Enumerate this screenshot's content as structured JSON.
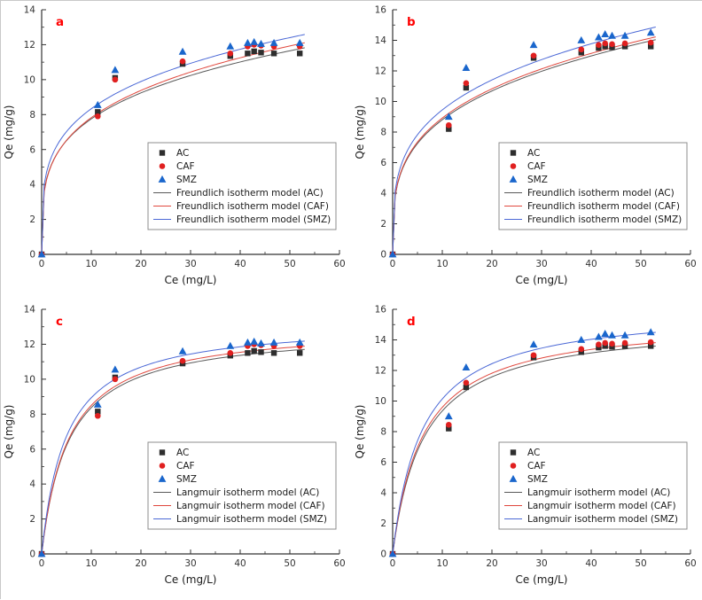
{
  "figure": {
    "background": "#ffffff",
    "axis_color": "#333333",
    "panel_letter_color": "#ff0000",
    "legend_border_color": "#8c8c8c",
    "colors": {
      "AC": "#2e2e2e",
      "CAF": "#e02020",
      "SMZ": "#1a66cc"
    },
    "line_colors": {
      "AC": "#595959",
      "CAF": "#e0483e",
      "SMZ": "#4b68d6"
    }
  },
  "chart_data": [
    {
      "type": "scatter",
      "panel": "a",
      "xlabel": "Ce (mg/L)",
      "ylabel": "Qe (mg/g)",
      "xlim": [
        0,
        60
      ],
      "ylim": [
        0,
        14
      ],
      "xticks": [
        0,
        10,
        20,
        30,
        40,
        50,
        60
      ],
      "yticks": [
        0,
        2,
        4,
        6,
        8,
        10,
        12,
        14
      ],
      "legend_position": "inside lower right",
      "series": [
        {
          "name": "AC",
          "kind": "scatter",
          "marker": "square",
          "color": "#2e2e2e",
          "points": [
            [
              0,
              0
            ],
            [
              11.3,
              8.15
            ],
            [
              14.8,
              10.1
            ],
            [
              28.4,
              10.9
            ],
            [
              38,
              11.35
            ],
            [
              41.5,
              11.5
            ],
            [
              42.8,
              11.62
            ],
            [
              44.2,
              11.55
            ],
            [
              46.8,
              11.5
            ],
            [
              52,
              11.5
            ]
          ]
        },
        {
          "name": "CAF",
          "kind": "scatter",
          "marker": "circle",
          "color": "#e02020",
          "points": [
            [
              0,
              0
            ],
            [
              11.3,
              7.9
            ],
            [
              14.8,
              10.0
            ],
            [
              28.4,
              11.05
            ],
            [
              38,
              11.5
            ],
            [
              41.5,
              11.9
            ],
            [
              42.8,
              12.0
            ],
            [
              44.2,
              11.95
            ],
            [
              46.8,
              11.9
            ],
            [
              52,
              11.9
            ]
          ]
        },
        {
          "name": "SMZ",
          "kind": "scatter",
          "marker": "triangle",
          "color": "#1a66cc",
          "points": [
            [
              0,
              0
            ],
            [
              11.3,
              8.55
            ],
            [
              14.8,
              10.55
            ],
            [
              28.4,
              11.6
            ],
            [
              38,
              11.9
            ],
            [
              41.5,
              12.1
            ],
            [
              42.8,
              12.15
            ],
            [
              44.2,
              12.05
            ],
            [
              46.8,
              12.1
            ],
            [
              52,
              12.1
            ]
          ]
        },
        {
          "name": "Freundlich isotherm model (AC)",
          "kind": "line",
          "color": "#595959",
          "model": "freundlich",
          "params": {
            "kf": 4.33,
            "n": 0.253
          }
        },
        {
          "name": "Freundlich isotherm model (CAF)",
          "kind": "line",
          "color": "#e0483e",
          "model": "freundlich",
          "params": {
            "kf": 4.28,
            "n": 0.262
          }
        },
        {
          "name": "Freundlich isotherm model (SMZ)",
          "kind": "line",
          "color": "#4b68d6",
          "model": "freundlich",
          "params": {
            "kf": 4.72,
            "n": 0.247
          }
        }
      ]
    },
    {
      "type": "scatter",
      "panel": "b",
      "xlabel": "Ce (mg/L)",
      "ylabel": "Qe (mg/g)",
      "xlim": [
        0,
        60
      ],
      "ylim": [
        0,
        16
      ],
      "xticks": [
        0,
        10,
        20,
        30,
        40,
        50,
        60
      ],
      "yticks": [
        0,
        2,
        4,
        6,
        8,
        10,
        12,
        14,
        16
      ],
      "legend_position": "inside lower right",
      "series": [
        {
          "name": "AC",
          "kind": "scatter",
          "marker": "square",
          "color": "#2e2e2e",
          "points": [
            [
              0,
              0
            ],
            [
              11.3,
              8.2
            ],
            [
              14.8,
              10.9
            ],
            [
              28.4,
              12.85
            ],
            [
              38,
              13.2
            ],
            [
              41.5,
              13.5
            ],
            [
              42.8,
              13.6
            ],
            [
              44.2,
              13.55
            ],
            [
              46.8,
              13.6
            ],
            [
              52,
              13.6
            ]
          ]
        },
        {
          "name": "CAF",
          "kind": "scatter",
          "marker": "circle",
          "color": "#e02020",
          "points": [
            [
              0,
              0
            ],
            [
              11.3,
              8.45
            ],
            [
              14.8,
              11.2
            ],
            [
              28.4,
              13.0
            ],
            [
              38,
              13.4
            ],
            [
              41.5,
              13.7
            ],
            [
              42.8,
              13.8
            ],
            [
              44.2,
              13.75
            ],
            [
              46.8,
              13.8
            ],
            [
              52,
              13.85
            ]
          ]
        },
        {
          "name": "SMZ",
          "kind": "scatter",
          "marker": "triangle",
          "color": "#1a66cc",
          "points": [
            [
              0,
              0
            ],
            [
              11.3,
              9.0
            ],
            [
              14.8,
              12.2
            ],
            [
              28.4,
              13.7
            ],
            [
              38,
              14.0
            ],
            [
              41.5,
              14.2
            ],
            [
              42.8,
              14.4
            ],
            [
              44.2,
              14.3
            ],
            [
              46.8,
              14.3
            ],
            [
              52,
              14.5
            ]
          ]
        },
        {
          "name": "Freundlich isotherm model (AC)",
          "kind": "line",
          "color": "#595959",
          "model": "freundlich",
          "params": {
            "kf": 4.62,
            "n": 0.28
          }
        },
        {
          "name": "Freundlich isotherm model (CAF)",
          "kind": "line",
          "color": "#e0483e",
          "model": "freundlich",
          "params": {
            "kf": 4.68,
            "n": 0.28
          }
        },
        {
          "name": "Freundlich isotherm model (SMZ)",
          "kind": "line",
          "color": "#4b68d6",
          "model": "freundlich",
          "params": {
            "kf": 5.05,
            "n": 0.272
          }
        }
      ]
    },
    {
      "type": "scatter",
      "panel": "c",
      "xlabel": "Ce (mg/L)",
      "ylabel": "Qe (mg/g)",
      "xlim": [
        0,
        60
      ],
      "ylim": [
        0,
        14
      ],
      "xticks": [
        0,
        10,
        20,
        30,
        40,
        50,
        60
      ],
      "yticks": [
        0,
        2,
        4,
        6,
        8,
        10,
        12,
        14
      ],
      "legend_position": "inside lower right",
      "series": [
        {
          "name": "AC",
          "kind": "scatter",
          "marker": "square",
          "color": "#2e2e2e",
          "points": [
            [
              0,
              0
            ],
            [
              11.3,
              8.15
            ],
            [
              14.8,
              10.1
            ],
            [
              28.4,
              10.9
            ],
            [
              38,
              11.35
            ],
            [
              41.5,
              11.5
            ],
            [
              42.8,
              11.62
            ],
            [
              44.2,
              11.55
            ],
            [
              46.8,
              11.5
            ],
            [
              52,
              11.5
            ]
          ]
        },
        {
          "name": "CAF",
          "kind": "scatter",
          "marker": "circle",
          "color": "#e02020",
          "points": [
            [
              0,
              0
            ],
            [
              11.3,
              7.9
            ],
            [
              14.8,
              10.0
            ],
            [
              28.4,
              11.05
            ],
            [
              38,
              11.5
            ],
            [
              41.5,
              11.9
            ],
            [
              42.8,
              12.0
            ],
            [
              44.2,
              11.95
            ],
            [
              46.8,
              11.9
            ],
            [
              52,
              11.9
            ]
          ]
        },
        {
          "name": "SMZ",
          "kind": "scatter",
          "marker": "triangle",
          "color": "#1a66cc",
          "points": [
            [
              0,
              0
            ],
            [
              11.3,
              8.55
            ],
            [
              14.8,
              10.55
            ],
            [
              28.4,
              11.6
            ],
            [
              38,
              11.9
            ],
            [
              41.5,
              12.1
            ],
            [
              42.8,
              12.15
            ],
            [
              44.2,
              12.05
            ],
            [
              46.8,
              12.1
            ],
            [
              52,
              12.1
            ]
          ]
        },
        {
          "name": "Langmuir isotherm model (AC)",
          "kind": "line",
          "color": "#595959",
          "model": "langmuir",
          "params": {
            "qm": 12.9,
            "kl": 0.185
          }
        },
        {
          "name": "Langmuir isotherm model (CAF)",
          "kind": "line",
          "color": "#e0483e",
          "model": "langmuir",
          "params": {
            "qm": 13.1,
            "kl": 0.185
          }
        },
        {
          "name": "Langmuir isotherm model (SMZ)",
          "kind": "line",
          "color": "#4b68d6",
          "model": "langmuir",
          "params": {
            "qm": 13.3,
            "kl": 0.205
          }
        }
      ]
    },
    {
      "type": "scatter",
      "panel": "d",
      "xlabel": "Ce (mg/L)",
      "ylabel": "Qe (mg/g)",
      "xlim": [
        0,
        60
      ],
      "ylim": [
        0,
        16
      ],
      "xticks": [
        0,
        10,
        20,
        30,
        40,
        50,
        60
      ],
      "yticks": [
        0,
        2,
        4,
        6,
        8,
        10,
        12,
        14,
        16
      ],
      "legend_position": "inside lower right",
      "series": [
        {
          "name": "AC",
          "kind": "scatter",
          "marker": "square",
          "color": "#2e2e2e",
          "points": [
            [
              0,
              0
            ],
            [
              11.3,
              8.2
            ],
            [
              14.8,
              10.9
            ],
            [
              28.4,
              12.85
            ],
            [
              38,
              13.2
            ],
            [
              41.5,
              13.5
            ],
            [
              42.8,
              13.6
            ],
            [
              44.2,
              13.55
            ],
            [
              46.8,
              13.6
            ],
            [
              52,
              13.6
            ]
          ]
        },
        {
          "name": "CAF",
          "kind": "scatter",
          "marker": "circle",
          "color": "#e02020",
          "points": [
            [
              0,
              0
            ],
            [
              11.3,
              8.45
            ],
            [
              14.8,
              11.2
            ],
            [
              28.4,
              13.0
            ],
            [
              38,
              13.4
            ],
            [
              41.5,
              13.7
            ],
            [
              42.8,
              13.8
            ],
            [
              44.2,
              13.75
            ],
            [
              46.8,
              13.8
            ],
            [
              52,
              13.85
            ]
          ]
        },
        {
          "name": "SMZ",
          "kind": "scatter",
          "marker": "triangle",
          "color": "#1a66cc",
          "points": [
            [
              0,
              0
            ],
            [
              11.3,
              9.0
            ],
            [
              14.8,
              12.2
            ],
            [
              28.4,
              13.7
            ],
            [
              38,
              14.0
            ],
            [
              41.5,
              14.2
            ],
            [
              42.8,
              14.4
            ],
            [
              44.2,
              14.3
            ],
            [
              46.8,
              14.3
            ],
            [
              52,
              14.5
            ]
          ]
        },
        {
          "name": "Langmuir isotherm model (AC)",
          "kind": "line",
          "color": "#595959",
          "model": "langmuir",
          "params": {
            "qm": 15.2,
            "kl": 0.16
          }
        },
        {
          "name": "Langmuir isotherm model (CAF)",
          "kind": "line",
          "color": "#e0483e",
          "model": "langmuir",
          "params": {
            "qm": 15.4,
            "kl": 0.165
          }
        },
        {
          "name": "Langmuir isotherm model (SMZ)",
          "kind": "line",
          "color": "#4b68d6",
          "model": "langmuir",
          "params": {
            "qm": 16.1,
            "kl": 0.17
          }
        }
      ]
    }
  ]
}
